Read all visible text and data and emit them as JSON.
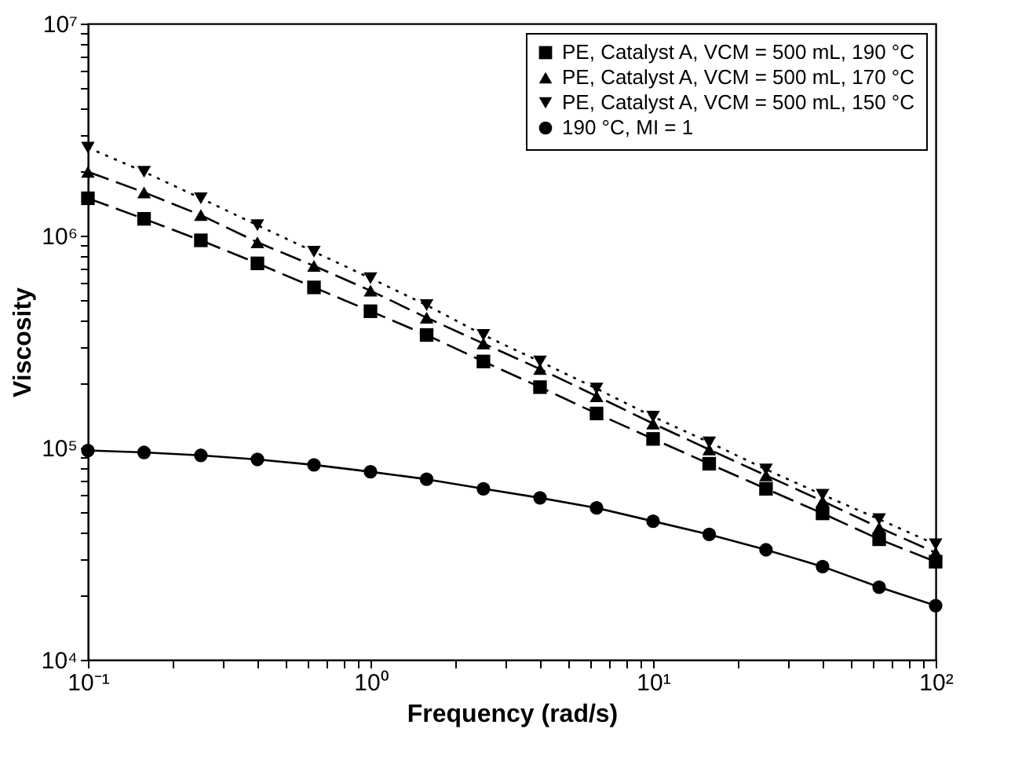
{
  "chart_data": {
    "type": "line",
    "xlabel": "Frequency (rad/s)",
    "ylabel": "Viscosity",
    "log": "xy",
    "grid": false,
    "legend": "top right",
    "x": [
      0.1,
      0.158,
      0.251,
      0.398,
      0.631,
      1,
      1.58,
      2.51,
      3.98,
      6.31,
      10,
      15.8,
      25.1,
      39.8,
      63.1,
      100
    ],
    "xlim": [
      0.1,
      100
    ],
    "ylim": [
      10000,
      10000000
    ],
    "xticks": [
      {
        "value": 0.1,
        "label": "10⁻¹"
      },
      {
        "value": 0.2,
        "label": null
      },
      {
        "value": 0.3,
        "label": null
      },
      {
        "value": 0.4,
        "label": null
      },
      {
        "value": 0.5,
        "label": null
      },
      {
        "value": 0.6,
        "label": null
      },
      {
        "value": 0.7,
        "label": null
      },
      {
        "value": 0.8,
        "label": null
      },
      {
        "value": 0.9,
        "label": null
      },
      {
        "value": 1,
        "label": "10⁰"
      },
      {
        "value": 2,
        "label": null
      },
      {
        "value": 3,
        "label": null
      },
      {
        "value": 4,
        "label": null
      },
      {
        "value": 5,
        "label": null
      },
      {
        "value": 6,
        "label": null
      },
      {
        "value": 7,
        "label": null
      },
      {
        "value": 8,
        "label": null
      },
      {
        "value": 9,
        "label": null
      },
      {
        "value": 10,
        "label": "10¹"
      },
      {
        "value": 20,
        "label": null
      },
      {
        "value": 30,
        "label": null
      },
      {
        "value": 40,
        "label": null
      },
      {
        "value": 50,
        "label": null
      },
      {
        "value": 60,
        "label": null
      },
      {
        "value": 70,
        "label": null
      },
      {
        "value": 80,
        "label": null
      },
      {
        "value": 90,
        "label": null
      },
      {
        "value": 100,
        "label": "10²"
      }
    ],
    "yticks": [
      {
        "value": 10000,
        "label": "10⁴"
      },
      {
        "value": 20000,
        "label": null
      },
      {
        "value": 30000,
        "label": null
      },
      {
        "value": 40000,
        "label": null
      },
      {
        "value": 50000,
        "label": null
      },
      {
        "value": 60000,
        "label": null
      },
      {
        "value": 70000,
        "label": null
      },
      {
        "value": 80000,
        "label": null
      },
      {
        "value": 90000,
        "label": null
      },
      {
        "value": 100000,
        "label": "10⁵"
      },
      {
        "value": 200000,
        "label": null
      },
      {
        "value": 300000,
        "label": null
      },
      {
        "value": 400000,
        "label": null
      },
      {
        "value": 500000,
        "label": null
      },
      {
        "value": 600000,
        "label": null
      },
      {
        "value": 700000,
        "label": null
      },
      {
        "value": 800000,
        "label": null
      },
      {
        "value": 900000,
        "label": null
      },
      {
        "value": 1000000,
        "label": "10⁶"
      },
      {
        "value": 2000000,
        "label": null
      },
      {
        "value": 3000000,
        "label": null
      },
      {
        "value": 4000000,
        "label": null
      },
      {
        "value": 5000000,
        "label": null
      },
      {
        "value": 6000000,
        "label": null
      },
      {
        "value": 7000000,
        "label": null
      },
      {
        "value": 8000000,
        "label": null
      },
      {
        "value": 9000000,
        "label": null
      },
      {
        "value": 10000000,
        "label": "10⁷"
      }
    ],
    "series": [
      {
        "name": "PE, Catalyst A, VCM = 500 mL, 190 °C",
        "color": "#000000",
        "marker": "square",
        "line_style": "dashed",
        "values": [
          1500000,
          1200000,
          950000,
          740000,
          570000,
          440000,
          340000,
          255000,
          193000,
          145000,
          110000,
          84000,
          64000,
          49000,
          37000,
          29000
        ]
      },
      {
        "name": "PE, Catalyst A, VCM = 500 mL, 170 °C",
        "color": "#000000",
        "marker": "triangle",
        "line_style": "dashed",
        "values": [
          2000000,
          1600000,
          1250000,
          930000,
          720000,
          550000,
          410000,
          310000,
          235000,
          175000,
          130000,
          98000,
          74000,
          56000,
          42000,
          32000
        ]
      },
      {
        "name": "PE, Catalyst A, VCM = 500 mL, 150 °C",
        "color": "#000000",
        "marker": "triangle-down",
        "line_style": "dotted",
        "values": [
          2600000,
          2000000,
          1500000,
          1120000,
          840000,
          630000,
          470000,
          340000,
          255000,
          190000,
          140000,
          106000,
          79000,
          60000,
          46000,
          35000
        ]
      },
      {
        "name": "190 °C, MI = 1",
        "color": "#000000",
        "marker": "circle",
        "line_style": "solid",
        "values": [
          97000,
          95000,
          92000,
          88000,
          83000,
          77000,
          71000,
          64000,
          58000,
          52000,
          45000,
          39000,
          33000,
          27500,
          22000,
          18000
        ]
      }
    ]
  }
}
